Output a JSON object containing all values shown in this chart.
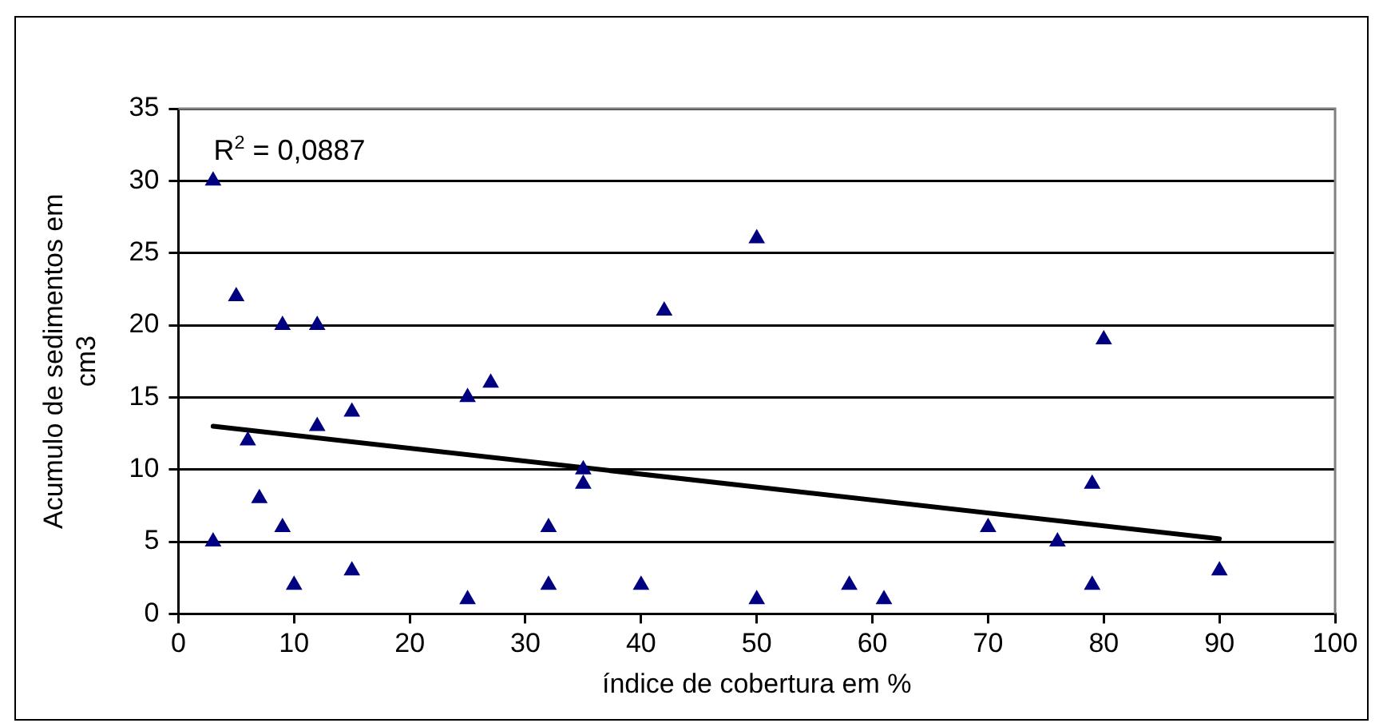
{
  "chart_data": {
    "type": "scatter",
    "xlabel": "índice de cobertura em %",
    "ylabel": "Acumulo de sedimentos em cm3",
    "annotations": [
      "R$^{2}$ = 0,0887"
    ],
    "series": [
      {
        "color": "#000080",
        "marker": "triangle",
        "x": [
          3,
          3,
          5,
          6,
          7,
          9,
          9,
          10,
          12,
          12,
          15,
          15,
          25,
          25,
          27,
          32,
          32,
          35,
          35,
          40,
          42,
          50,
          50,
          58,
          61,
          70,
          76,
          79,
          79,
          80,
          90
        ],
        "values": [
          30,
          5,
          22,
          12,
          8,
          20,
          6,
          2,
          20,
          13,
          14,
          3,
          15,
          1,
          16,
          6,
          2,
          10,
          9,
          2,
          21,
          26,
          1,
          2,
          1,
          6,
          5,
          9,
          2,
          19,
          3
        ]
      },
      {
        "type": "line",
        "color": "#000000",
        "marker": "none",
        "line_style": "solid",
        "x": [
          3,
          90
        ],
        "values": [
          13.0,
          5.2
        ]
      }
    ],
    "xlim": [
      0,
      100
    ],
    "xticks": [
      0,
      10,
      20,
      30,
      40,
      50,
      60,
      70,
      80,
      90,
      100
    ],
    "ylim": [
      0,
      35
    ],
    "yticks": [
      0,
      5,
      10,
      15,
      20,
      25,
      30,
      35
    ],
    "grid": "y",
    "legend": false
  }
}
